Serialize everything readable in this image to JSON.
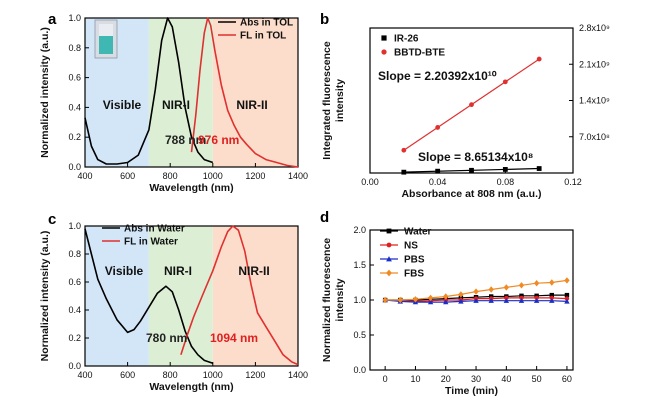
{
  "chart_data": [
    {
      "id": "a",
      "panel_label": "a",
      "type": "line",
      "xlabel": "Wavelength (nm)",
      "ylabel": "Normalized intensity (a.u.)",
      "xlim": [
        400,
        1400
      ],
      "ylim": [
        0,
        1.0
      ],
      "xticks": [
        400,
        600,
        800,
        1000,
        1200,
        1400
      ],
      "yticks": [
        0.0,
        0.2,
        0.4,
        0.6,
        0.8,
        1.0
      ],
      "regions": [
        {
          "label": "Visible",
          "from": 400,
          "to": 700,
          "color": "#d2e6f8"
        },
        {
          "label": "NIR-I",
          "from": 700,
          "to": 1000,
          "color": "#dcefd5"
        },
        {
          "label": "NIR-II",
          "from": 1000,
          "to": 1400,
          "color": "#fcdcca"
        }
      ],
      "legend": [
        "Abs in TOL",
        "FL   in TOL"
      ],
      "annotations": [
        {
          "text": "788 nm",
          "color": "#222222"
        },
        {
          "text": "976 nm",
          "color": "#e02020"
        }
      ],
      "series": [
        {
          "name": "Abs in TOL",
          "color": "#000000",
          "x": [
            400,
            430,
            460,
            500,
            550,
            600,
            650,
            700,
            730,
            760,
            788,
            810,
            840,
            870,
            900,
            930,
            960,
            1000
          ],
          "y": [
            0.33,
            0.14,
            0.05,
            0.02,
            0.02,
            0.03,
            0.08,
            0.25,
            0.52,
            0.85,
            1.0,
            0.94,
            0.7,
            0.4,
            0.2,
            0.1,
            0.05,
            0.03
          ]
        },
        {
          "name": "FL   in TOL",
          "color": "#e03030",
          "x": [
            900,
            920,
            940,
            960,
            976,
            990,
            1010,
            1040,
            1070,
            1100,
            1130,
            1160,
            1200,
            1250,
            1300,
            1350,
            1400
          ],
          "y": [
            0.1,
            0.35,
            0.65,
            0.9,
            1.0,
            0.95,
            0.78,
            0.55,
            0.38,
            0.28,
            0.2,
            0.15,
            0.09,
            0.05,
            0.03,
            0.01,
            0.0
          ]
        }
      ]
    },
    {
      "id": "b",
      "panel_label": "b",
      "type": "scatter",
      "xlabel": "Absorbance at 808 nm (a.u.)",
      "ylabel": "Integrated fluorescence intensity",
      "xlim": [
        0.0,
        0.12
      ],
      "ylim": [
        0,
        2800000000.0
      ],
      "xticks": [
        0.0,
        0.04,
        0.08,
        0.12
      ],
      "xtick_labels": [
        "0.00",
        "0.04",
        "0.08",
        "0.12"
      ],
      "yticks": [
        700000000.0,
        1400000000.0,
        2100000000.0,
        2800000000.0
      ],
      "ytick_labels": [
        "7.0x10⁸",
        "1.4x10⁹",
        "2.1x10⁹",
        "2.8x10⁹"
      ],
      "legend": [
        "IR-26",
        "BBTD-BTE"
      ],
      "annotations": [
        {
          "text": "Slope = 2.20392x10¹⁰",
          "color": "#111111"
        },
        {
          "text": "Slope = 8.65134x10⁸",
          "color": "#111111"
        }
      ],
      "series": [
        {
          "name": "IR-26",
          "color": "#000000",
          "marker": "square",
          "x": [
            0.02,
            0.04,
            0.06,
            0.08,
            0.1
          ],
          "y": [
            16000000.0,
            35000000.0,
            52000000.0,
            69000000.0,
            86000000.0
          ]
        },
        {
          "name": "BBTD-BTE",
          "color": "#e03030",
          "marker": "circle",
          "x": [
            0.02,
            0.04,
            0.06,
            0.08,
            0.1
          ],
          "y": [
            440000000.0,
            880000000.0,
            1320000000.0,
            1760000000.0,
            2200000000.0
          ]
        }
      ]
    },
    {
      "id": "c",
      "panel_label": "c",
      "type": "line",
      "xlabel": "Wavelength (nm)",
      "ylabel": "Normalized intensity (a.u.)",
      "xlim": [
        400,
        1400
      ],
      "ylim": [
        0,
        1.0
      ],
      "xticks": [
        400,
        600,
        800,
        1000,
        1200,
        1400
      ],
      "yticks": [
        0.0,
        0.2,
        0.4,
        0.6,
        0.8,
        1.0
      ],
      "regions": [
        {
          "label": "Visible",
          "from": 400,
          "to": 700,
          "color": "#d2e6f8"
        },
        {
          "label": "NIR-I",
          "from": 700,
          "to": 1000,
          "color": "#dcefd5"
        },
        {
          "label": "NIR-II",
          "from": 1000,
          "to": 1400,
          "color": "#fcdcca"
        }
      ],
      "legend": [
        "Abs in Water",
        "FL   in Water"
      ],
      "annotations": [
        {
          "text": "780 nm",
          "color": "#222222"
        },
        {
          "text": "1094 nm",
          "color": "#e02020"
        }
      ],
      "series": [
        {
          "name": "Abs in Water",
          "color": "#000000",
          "x": [
            400,
            430,
            460,
            500,
            550,
            600,
            630,
            660,
            700,
            740,
            780,
            810,
            840,
            870,
            900,
            930,
            960,
            1000
          ],
          "y": [
            0.98,
            0.8,
            0.62,
            0.48,
            0.33,
            0.24,
            0.26,
            0.32,
            0.42,
            0.52,
            0.57,
            0.53,
            0.4,
            0.25,
            0.14,
            0.08,
            0.04,
            0.02
          ]
        },
        {
          "name": "FL   in Water",
          "color": "#e03030",
          "x": [
            850,
            880,
            910,
            950,
            1000,
            1040,
            1070,
            1094,
            1120,
            1150,
            1180,
            1210,
            1250,
            1290,
            1330,
            1370,
            1400
          ],
          "y": [
            0.08,
            0.22,
            0.35,
            0.5,
            0.68,
            0.85,
            0.96,
            1.0,
            0.97,
            0.82,
            0.58,
            0.38,
            0.28,
            0.18,
            0.08,
            0.03,
            0.01
          ]
        }
      ]
    },
    {
      "id": "d",
      "panel_label": "d",
      "type": "line",
      "xlabel": "Time (min)",
      "ylabel": "Normalized fluorescence intensity",
      "xlim": [
        -5,
        62
      ],
      "ylim": [
        0,
        2.0
      ],
      "xticks": [
        0,
        10,
        20,
        30,
        40,
        50,
        60
      ],
      "yticks": [
        0.0,
        0.5,
        1.0,
        1.5,
        2.0
      ],
      "ytick_labels": [
        "0.0",
        "0.5",
        "1.0",
        "1.5",
        "2.0"
      ],
      "legend": [
        "Water",
        "NS",
        "PBS",
        "FBS"
      ],
      "series": [
        {
          "name": "Water",
          "color": "#000000",
          "marker": "square",
          "x": [
            0,
            5,
            10,
            15,
            20,
            25,
            30,
            35,
            40,
            45,
            50,
            55,
            60
          ],
          "y": [
            1.0,
            1.0,
            1.0,
            1.01,
            1.02,
            1.03,
            1.04,
            1.05,
            1.05,
            1.06,
            1.06,
            1.07,
            1.07
          ]
        },
        {
          "name": "NS",
          "color": "#e02020",
          "marker": "circle",
          "x": [
            0,
            5,
            10,
            15,
            20,
            25,
            30,
            35,
            40,
            45,
            50,
            55,
            60
          ],
          "y": [
            1.0,
            0.99,
            0.98,
            0.99,
            1.0,
            1.0,
            1.02,
            1.02,
            1.03,
            1.03,
            1.03,
            1.03,
            1.02
          ]
        },
        {
          "name": "PBS",
          "color": "#1a2fc8",
          "marker": "triangle",
          "x": [
            0,
            5,
            10,
            15,
            20,
            25,
            30,
            35,
            40,
            45,
            50,
            55,
            60
          ],
          "y": [
            1.0,
            0.98,
            0.97,
            0.97,
            0.97,
            0.98,
            0.99,
            0.99,
            0.99,
            0.99,
            0.99,
            0.99,
            0.98
          ]
        },
        {
          "name": "FBS",
          "color": "#f08a24",
          "marker": "diamond",
          "x": [
            0,
            5,
            10,
            15,
            20,
            25,
            30,
            35,
            40,
            45,
            50,
            55,
            60
          ],
          "y": [
            1.0,
            1.0,
            1.01,
            1.03,
            1.05,
            1.08,
            1.12,
            1.15,
            1.18,
            1.21,
            1.24,
            1.25,
            1.28
          ]
        }
      ]
    }
  ]
}
